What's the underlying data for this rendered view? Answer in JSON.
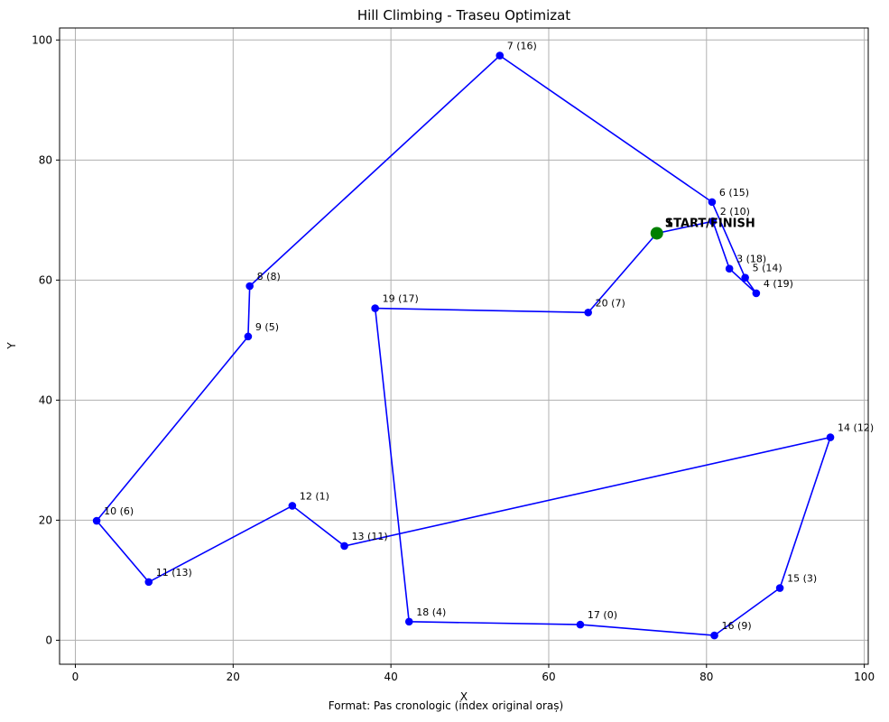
{
  "chart_data": {
    "type": "line",
    "title": "Hill Climbing - Traseu Optimizat",
    "xlabel": "X",
    "ylabel": "Y",
    "footnote": "Format: Pas cronologic (index original oraș)",
    "xlim": [
      -2,
      100.5
    ],
    "ylim": [
      -4,
      102
    ],
    "xticks": [
      0,
      20,
      40,
      60,
      80,
      100
    ],
    "yticks": [
      0,
      20,
      40,
      60,
      80,
      100
    ],
    "grid": true,
    "line_color": "#0000ff",
    "start_color": "#008000",
    "start_label": "START/FINISH",
    "start": {
      "x": 73.7,
      "y": 67.8
    },
    "points": [
      {
        "label": "1",
        "x": 73.7,
        "y": 67.8
      },
      {
        "label": "2 (10)",
        "x": 80.8,
        "y": 69.8
      },
      {
        "label": "3 (18)",
        "x": 82.9,
        "y": 61.9
      },
      {
        "label": "4 (19)",
        "x": 86.3,
        "y": 57.8
      },
      {
        "label": "5 (14)",
        "x": 84.9,
        "y": 60.4
      },
      {
        "label": "6 (15)",
        "x": 80.7,
        "y": 73.0
      },
      {
        "label": "7 (16)",
        "x": 53.8,
        "y": 97.4
      },
      {
        "label": "8 (8)",
        "x": 22.1,
        "y": 59.0
      },
      {
        "label": "9 (5)",
        "x": 21.9,
        "y": 50.6
      },
      {
        "label": "10 (6)",
        "x": 2.7,
        "y": 19.9
      },
      {
        "label": "11 (13)",
        "x": 9.3,
        "y": 9.7
      },
      {
        "label": "12 (1)",
        "x": 27.5,
        "y": 22.4
      },
      {
        "label": "13 (11)",
        "x": 34.1,
        "y": 15.7
      },
      {
        "label": "14 (12)",
        "x": 95.7,
        "y": 33.8
      },
      {
        "label": "15 (3)",
        "x": 89.3,
        "y": 8.7
      },
      {
        "label": "16 (9)",
        "x": 81.0,
        "y": 0.8
      },
      {
        "label": "17 (0)",
        "x": 64.0,
        "y": 2.6
      },
      {
        "label": "18 (4)",
        "x": 42.3,
        "y": 3.1
      },
      {
        "label": "19 (17)",
        "x": 38.0,
        "y": 55.3
      },
      {
        "label": "20 (7)",
        "x": 65.0,
        "y": 54.6
      }
    ]
  }
}
